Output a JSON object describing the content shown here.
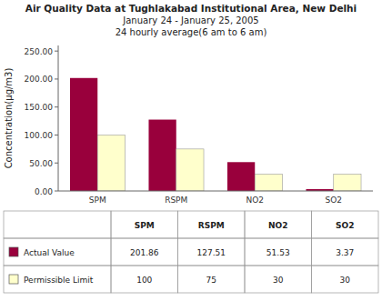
{
  "chart_data": {
    "type": "bar",
    "title": "Air Quality Data at Tughlakabad Institutional Area, New Delhi\nJanuary 24  - January 25, 2005\n24 hourly average(6 am to 6 am)",
    "categories": [
      "SPM",
      "RSPM",
      "NO2",
      "SO2"
    ],
    "series": [
      {
        "name": "Actual Value",
        "color": "#99003C",
        "values": [
          201.86,
          127.51,
          51.53,
          3.37
        ]
      },
      {
        "name": "Permissible Limit",
        "color": "#FFFFCC",
        "values": [
          100,
          75,
          30,
          30
        ]
      }
    ],
    "ylabel": "Concentration(µg/m3)",
    "ylim": [
      0,
      260
    ],
    "yticks": [
      {
        "value": 0,
        "label": "0.00"
      },
      {
        "value": 50,
        "label": "50.00"
      },
      {
        "value": 100,
        "label": "100.00"
      },
      {
        "value": 150,
        "label": "150.00"
      },
      {
        "value": 200,
        "label": "200.00"
      },
      {
        "value": 250,
        "label": "250.00"
      }
    ],
    "grid": false
  }
}
